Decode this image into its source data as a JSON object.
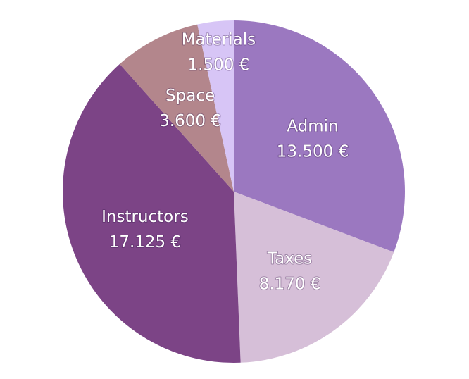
{
  "chart_data": {
    "type": "pie",
    "title": "",
    "currency": "€",
    "start_angle_deg": 0,
    "direction": "clockwise",
    "slices": [
      {
        "label": "Admin",
        "value": 13500,
        "value_text": "13.500 €",
        "color": "#9b78c0"
      },
      {
        "label": "Taxes",
        "value": 8170,
        "value_text": "8.170 €",
        "color": "#d6bfd8"
      },
      {
        "label": "Instructors",
        "value": 17125,
        "value_text": "17.125 €",
        "color": "#7c4486"
      },
      {
        "label": "Space",
        "value": 3600,
        "value_text": "3.600 €",
        "color": "#b3868c"
      },
      {
        "label": "Materials",
        "value": 1500,
        "value_text": "1.500 €",
        "color": "#d7c5f6"
      }
    ]
  }
}
